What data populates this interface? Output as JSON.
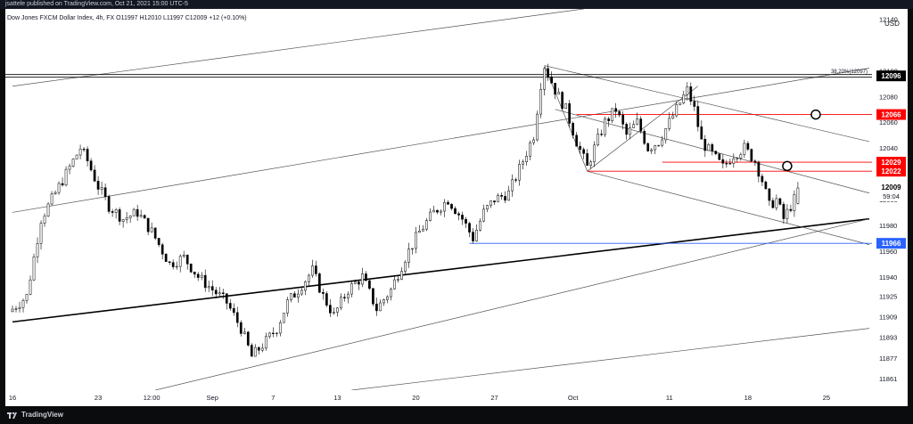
{
  "header": {
    "published": "jsattele published on TradingView.com, Oct 21, 2021 15:00 UTC-5"
  },
  "legend": {
    "symbol_line": "Dow Jones FXCM Dollar Index, 4h, FX  O11997  H12010  L11997  C12009  +12 (+0.10%)"
  },
  "footer": {
    "brand": "TradingView"
  },
  "colors": {
    "up": "#000000",
    "down": "#000000",
    "resistance": "#ff0000",
    "support": "#2962ff",
    "trendline": "#000000",
    "current_label": "#000000",
    "label_text": "#ffffff"
  },
  "chart_data": {
    "type": "candlestick",
    "title": "",
    "currency_label": "USD",
    "timeframe": "4h",
    "symbol": "Dow Jones FXCM Dollar Index",
    "ylim": [
      11852,
      12148
    ],
    "y_ticks": [
      12140,
      12100,
      12080,
      12060,
      12040,
      12020,
      12000,
      11980,
      11960,
      11940,
      11925,
      11909,
      11893,
      11877,
      11861
    ],
    "x_ticks": [
      {
        "label": "16",
        "idx": 0
      },
      {
        "label": "23",
        "idx": 24
      },
      {
        "label": "12:00",
        "idx": 39
      },
      {
        "label": "Sep",
        "idx": 56
      },
      {
        "label": "7",
        "idx": 73
      },
      {
        "label": "13",
        "idx": 91
      },
      {
        "label": "20",
        "idx": 113
      },
      {
        "label": "27",
        "idx": 135
      },
      {
        "label": "Oct",
        "idx": 157
      },
      {
        "label": "11",
        "idx": 184
      },
      {
        "label": "18",
        "idx": 206
      },
      {
        "label": "25",
        "idx": 228
      }
    ],
    "close_path": [
      {
        "i": 0,
        "v": 11915
      },
      {
        "i": 4,
        "v": 11925
      },
      {
        "i": 8,
        "v": 11985
      },
      {
        "i": 12,
        "v": 12005
      },
      {
        "i": 16,
        "v": 12025
      },
      {
        "i": 19,
        "v": 12040
      },
      {
        "i": 21,
        "v": 12030
      },
      {
        "i": 24,
        "v": 12010
      },
      {
        "i": 27,
        "v": 11995
      },
      {
        "i": 31,
        "v": 11985
      },
      {
        "i": 35,
        "v": 11990
      },
      {
        "i": 39,
        "v": 11975
      },
      {
        "i": 44,
        "v": 11950
      },
      {
        "i": 48,
        "v": 11955
      },
      {
        "i": 52,
        "v": 11940
      },
      {
        "i": 56,
        "v": 11930
      },
      {
        "i": 60,
        "v": 11920
      },
      {
        "i": 64,
        "v": 11900
      },
      {
        "i": 67,
        "v": 11878
      },
      {
        "i": 71,
        "v": 11890
      },
      {
        "i": 74,
        "v": 11900
      },
      {
        "i": 77,
        "v": 11920
      },
      {
        "i": 80,
        "v": 11930
      },
      {
        "i": 84,
        "v": 11945
      },
      {
        "i": 87,
        "v": 11925
      },
      {
        "i": 90,
        "v": 11910
      },
      {
        "i": 94,
        "v": 11930
      },
      {
        "i": 98,
        "v": 11940
      },
      {
        "i": 102,
        "v": 11915
      },
      {
        "i": 106,
        "v": 11930
      },
      {
        "i": 110,
        "v": 11955
      },
      {
        "i": 114,
        "v": 11975
      },
      {
        "i": 118,
        "v": 11990
      },
      {
        "i": 122,
        "v": 12000
      },
      {
        "i": 126,
        "v": 11985
      },
      {
        "i": 129,
        "v": 11970
      },
      {
        "i": 132,
        "v": 11990
      },
      {
        "i": 135,
        "v": 12000
      },
      {
        "i": 139,
        "v": 12005
      },
      {
        "i": 143,
        "v": 12030
      },
      {
        "i": 146,
        "v": 12050
      },
      {
        "i": 148,
        "v": 12090
      },
      {
        "i": 149,
        "v": 12104
      },
      {
        "i": 152,
        "v": 12085
      },
      {
        "i": 155,
        "v": 12070
      },
      {
        "i": 158,
        "v": 12045
      },
      {
        "i": 161,
        "v": 12025
      },
      {
        "i": 163,
        "v": 12040
      },
      {
        "i": 166,
        "v": 12060
      },
      {
        "i": 169,
        "v": 12070
      },
      {
        "i": 172,
        "v": 12050
      },
      {
        "i": 175,
        "v": 12060
      },
      {
        "i": 178,
        "v": 12040
      },
      {
        "i": 181,
        "v": 12045
      },
      {
        "i": 184,
        "v": 12060
      },
      {
        "i": 187,
        "v": 12075
      },
      {
        "i": 189,
        "v": 12085
      },
      {
        "i": 191,
        "v": 12070
      },
      {
        "i": 193,
        "v": 12045
      },
      {
        "i": 196,
        "v": 12035
      },
      {
        "i": 199,
        "v": 12025
      },
      {
        "i": 202,
        "v": 12035
      },
      {
        "i": 205,
        "v": 12040
      },
      {
        "i": 208,
        "v": 12030
      },
      {
        "i": 210,
        "v": 12015
      },
      {
        "i": 212,
        "v": 11995
      },
      {
        "i": 214,
        "v": 12000
      },
      {
        "i": 216,
        "v": 11985
      },
      {
        "i": 218,
        "v": 11995
      },
      {
        "i": 219,
        "v": 12000
      },
      {
        "i": 220,
        "v": 12009
      }
    ],
    "levels": [
      {
        "name": "level-12096",
        "value": 12096,
        "label": "12096",
        "color": "#000000",
        "style": "double",
        "note": "38.20%(12097)"
      },
      {
        "name": "level-12066",
        "value": 12066,
        "label": "12066",
        "color": "#ff0000",
        "from_idx": 158
      },
      {
        "name": "level-12029",
        "value": 12029,
        "label": "12029",
        "color": "#ff0000",
        "from_idx": 182
      },
      {
        "name": "level-12022",
        "value": 12022,
        "label": "12022",
        "color": "#ff0000",
        "from_idx": 161
      },
      {
        "name": "level-11966",
        "value": 11966,
        "label": "11966",
        "color": "#2962ff",
        "from_idx": 128
      }
    ],
    "current_price": {
      "value": 12009,
      "label": "12009",
      "countdown": "59:04"
    },
    "trendlines": [
      {
        "name": "channel-upper",
        "from": [
          0,
          11990
        ],
        "to": [
          240,
          12102
        ]
      },
      {
        "name": "channel-top-far",
        "from": [
          0,
          12088
        ],
        "to": [
          160,
          12148
        ]
      },
      {
        "name": "main-support",
        "from": [
          0,
          11905
        ],
        "to": [
          240,
          11985
        ],
        "bold": true
      },
      {
        "name": "lower-channel",
        "from": [
          40,
          11852
        ],
        "to": [
          240,
          11985
        ]
      },
      {
        "name": "lower-far",
        "from": [
          95,
          11852
        ],
        "to": [
          240,
          11900
        ]
      },
      {
        "name": "desc-upper",
        "from": [
          149,
          12104
        ],
        "to": [
          240,
          12045
        ]
      },
      {
        "name": "desc-lower",
        "from": [
          161,
          12022
        ],
        "to": [
          240,
          11965
        ]
      },
      {
        "name": "desc-mid",
        "from": [
          152,
          12070
        ],
        "to": [
          240,
          12005
        ]
      },
      {
        "name": "rise-diag",
        "from": [
          161,
          12022
        ],
        "to": [
          192,
          12088
        ]
      },
      {
        "name": "fan-left",
        "from": [
          149,
          12104
        ],
        "to": [
          161,
          12022
        ]
      }
    ],
    "circles": [
      {
        "name": "target-circle-upper",
        "i": 225,
        "v": 12066
      },
      {
        "name": "target-circle-lower",
        "i": 217,
        "v": 12026
      }
    ],
    "n_bars": 241
  }
}
